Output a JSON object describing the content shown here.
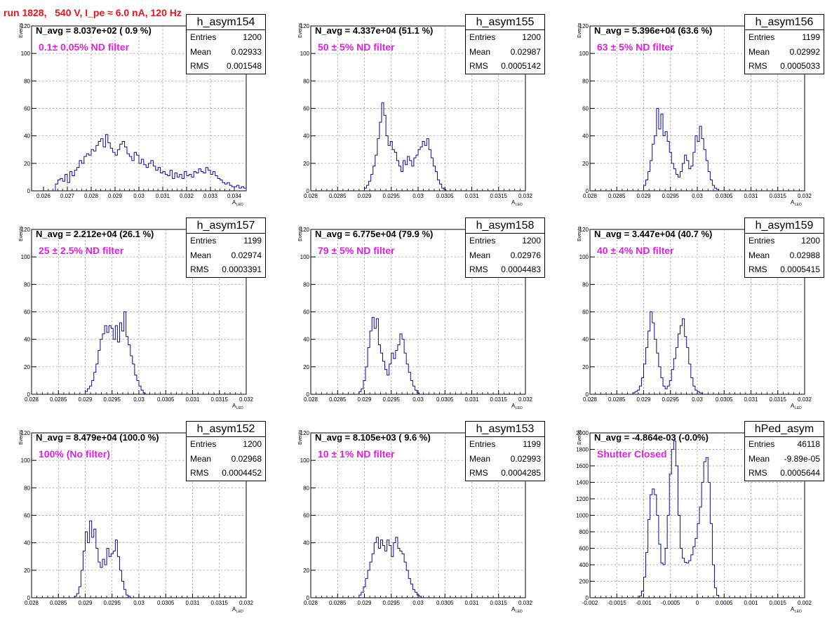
{
  "run_title": "run 1828,   540 V, I_pe ≈ 6.0 nA, 120 Hz",
  "chart_data": [
    {
      "type": "bar",
      "name": "h_asym154",
      "navg": "N_avg = 8.037e+02 ( 0.9 %)",
      "filter": "0.1± 0.05% ND filter",
      "stats": {
        "entries_label": "Entries",
        "entries": "1200",
        "mean_label": "Mean",
        "mean": "0.02933",
        "rms_label": "RMS",
        "rms": "0.001548"
      },
      "xlabel": "A",
      "xlabel_sub": "LED",
      "ylabel": "Events",
      "xlim": [
        0.0255,
        0.0345
      ],
      "ylim": [
        0,
        120
      ],
      "xticks": [
        0.026,
        0.027,
        0.028,
        0.029,
        0.03,
        0.031,
        0.032,
        0.033,
        0.034
      ],
      "xtick_labels": [
        "0.026",
        "0.027",
        "0.028",
        "0.029",
        "0.03",
        "0.031",
        "0.032",
        "0.033",
        "0.034"
      ],
      "yticks": [
        0,
        20,
        40,
        60,
        80,
        100,
        120
      ],
      "ytick_labels": [
        "0",
        "20",
        "40",
        "60",
        "80",
        "100",
        "120"
      ],
      "bin_start": 0.0265,
      "bin_width": 0.0001,
      "values": [
        5,
        8,
        9,
        7,
        12,
        6,
        14,
        11,
        15,
        17,
        22,
        20,
        25,
        27,
        26,
        30,
        29,
        33,
        36,
        38,
        32,
        41,
        35,
        31,
        28,
        26,
        30,
        34,
        36,
        32,
        27,
        25,
        22,
        28,
        26,
        20,
        23,
        19,
        17,
        20,
        22,
        18,
        15,
        17,
        13,
        14,
        12,
        11,
        15,
        9,
        13,
        10,
        12,
        9,
        14,
        11,
        12,
        10,
        14,
        13,
        16,
        14,
        13,
        17,
        15,
        12,
        14,
        11,
        9,
        8,
        6,
        5,
        6,
        4,
        3,
        3,
        4,
        2,
        3,
        2
      ]
    },
    {
      "type": "bar",
      "name": "h_asym155",
      "navg": "N_avg = 4.337e+04 (51.1 %)",
      "filter": "50 ± 5% ND filter",
      "stats": {
        "entries_label": "Entries",
        "entries": "1200",
        "mean_label": "Mean",
        "mean": "0.02987",
        "rms_label": "RMS",
        "rms": "0.0005142"
      },
      "xlabel": "A",
      "xlabel_sub": "LED",
      "ylabel": "Events",
      "xlim": [
        0.028,
        0.032
      ],
      "ylim": [
        0,
        120
      ],
      "xticks": [
        0.028,
        0.0285,
        0.029,
        0.0295,
        0.03,
        0.0305,
        0.031,
        0.0315,
        0.032
      ],
      "xtick_labels": [
        "0.028",
        "0.0285",
        "0.029",
        "0.0295",
        "0.03",
        "0.0305",
        "0.031",
        "0.0315",
        "0.032"
      ],
      "yticks": [
        0,
        20,
        40,
        60,
        80,
        100,
        120
      ],
      "ytick_labels": [
        "0",
        "20",
        "40",
        "60",
        "80",
        "100",
        "120"
      ],
      "bin_start": 0.029,
      "bin_width": 4e-05,
      "values": [
        2,
        4,
        7,
        12,
        18,
        26,
        38,
        50,
        64,
        55,
        40,
        33,
        36,
        30,
        28,
        22,
        18,
        14,
        22,
        19,
        25,
        22,
        18,
        24,
        26,
        30,
        32,
        36,
        33,
        38,
        30,
        24,
        18,
        14,
        8,
        5,
        2,
        1
      ]
    },
    {
      "type": "bar",
      "name": "h_asym156",
      "navg": "N_avg = 5.396e+04 (63.6 %)",
      "filter": "63 ± 5% ND filter",
      "stats": {
        "entries_label": "Entries",
        "entries": "1199",
        "mean_label": "Mean",
        "mean": "0.02992",
        "rms_label": "RMS",
        "rms": "0.0005033"
      },
      "xlabel": "A",
      "xlabel_sub": "LED",
      "ylabel": "Events",
      "xlim": [
        0.028,
        0.032
      ],
      "ylim": [
        0,
        120
      ],
      "xticks": [
        0.028,
        0.0285,
        0.029,
        0.0295,
        0.03,
        0.0305,
        0.031,
        0.0315,
        0.032
      ],
      "xtick_labels": [
        "0.028",
        "0.0285",
        "0.029",
        "0.0295",
        "0.03",
        "0.0305",
        "0.031",
        "0.0315",
        "0.032"
      ],
      "yticks": [
        0,
        20,
        40,
        60,
        80,
        100,
        120
      ],
      "ytick_labels": [
        "0",
        "20",
        "40",
        "60",
        "80",
        "100",
        "120"
      ],
      "bin_start": 0.029,
      "bin_width": 4e-05,
      "values": [
        4,
        8,
        14,
        22,
        34,
        40,
        60,
        45,
        56,
        40,
        43,
        36,
        28,
        20,
        16,
        12,
        10,
        14,
        20,
        26,
        22,
        16,
        18,
        28,
        40,
        36,
        47,
        38,
        30,
        22,
        14,
        8,
        4,
        2,
        1
      ]
    },
    {
      "type": "bar",
      "name": "h_asym157",
      "navg": "N_avg = 2.212e+04 (26.1 %)",
      "filter": "25 ± 2.5% ND filter",
      "stats": {
        "entries_label": "Entries",
        "entries": "1199",
        "mean_label": "Mean",
        "mean": "0.02974",
        "rms_label": "RMS",
        "rms": "0.0003391"
      },
      "xlabel": "A",
      "xlabel_sub": "LED",
      "ylabel": "Events",
      "xlim": [
        0.028,
        0.032
      ],
      "ylim": [
        0,
        120
      ],
      "xticks": [
        0.028,
        0.0285,
        0.029,
        0.0295,
        0.03,
        0.0305,
        0.031,
        0.0315,
        0.032
      ],
      "xtick_labels": [
        "0.028",
        "0.0285",
        "0.029",
        "0.0295",
        "0.03",
        "0.0305",
        "0.031",
        "0.0315",
        "0.032"
      ],
      "yticks": [
        0,
        20,
        40,
        60,
        80,
        100,
        120
      ],
      "ytick_labels": [
        "0",
        "20",
        "40",
        "60",
        "80",
        "100",
        "120"
      ],
      "bin_start": 0.029,
      "bin_width": 4e-05,
      "values": [
        2,
        4,
        6,
        10,
        16,
        22,
        32,
        40,
        44,
        50,
        45,
        50,
        48,
        40,
        50,
        38,
        52,
        46,
        60,
        42,
        36,
        28,
        22,
        14,
        10,
        6,
        3,
        1
      ]
    },
    {
      "type": "bar",
      "name": "h_asym158",
      "navg": "N_avg = 6.775e+04 (79.9 %)",
      "filter": "79 ± 5% ND filter",
      "stats": {
        "entries_label": "Entries",
        "entries": "1200",
        "mean_label": "Mean",
        "mean": "0.02976",
        "rms_label": "RMS",
        "rms": "0.0004483"
      },
      "xlabel": "A",
      "xlabel_sub": "LED",
      "ylabel": "Events",
      "xlim": [
        0.028,
        0.032
      ],
      "ylim": [
        0,
        120
      ],
      "xticks": [
        0.028,
        0.0285,
        0.029,
        0.0295,
        0.03,
        0.0305,
        0.031,
        0.0315,
        0.032
      ],
      "xtick_labels": [
        "0.028",
        "0.0285",
        "0.029",
        "0.0295",
        "0.03",
        "0.0305",
        "0.031",
        "0.0315",
        "0.032"
      ],
      "yticks": [
        0,
        20,
        40,
        60,
        80,
        100,
        120
      ],
      "ytick_labels": [
        "0",
        "20",
        "40",
        "60",
        "80",
        "100",
        "120"
      ],
      "bin_start": 0.0289,
      "bin_width": 4e-05,
      "values": [
        2,
        4,
        10,
        20,
        34,
        46,
        56,
        48,
        55,
        36,
        30,
        24,
        18,
        14,
        22,
        30,
        26,
        32,
        36,
        44,
        40,
        30,
        22,
        16,
        10,
        6,
        3,
        1
      ]
    },
    {
      "type": "bar",
      "name": "h_asym159",
      "navg": "N_avg = 3.447e+04 (40.7 %)",
      "filter": "40 ± 4% ND filter",
      "stats": {
        "entries_label": "Entries",
        "entries": "1200",
        "mean_label": "Mean",
        "mean": "0.02988",
        "rms_label": "RMS",
        "rms": "0.0005415"
      },
      "xlabel": "A",
      "xlabel_sub": "LED",
      "ylabel": "Events",
      "xlim": [
        0.028,
        0.032
      ],
      "ylim": [
        0,
        120
      ],
      "xticks": [
        0.028,
        0.0285,
        0.029,
        0.0295,
        0.03,
        0.0305,
        0.031,
        0.0315,
        0.032
      ],
      "xtick_labels": [
        "0.028",
        "0.0285",
        "0.029",
        "0.0295",
        "0.03",
        "0.0305",
        "0.031",
        "0.0315",
        "0.032"
      ],
      "yticks": [
        0,
        20,
        40,
        60,
        80,
        100,
        120
      ],
      "ytick_labels": [
        "0",
        "20",
        "40",
        "60",
        "80",
        "100",
        "120"
      ],
      "bin_start": 0.0288,
      "bin_width": 4e-05,
      "values": [
        1,
        2,
        3,
        6,
        12,
        22,
        34,
        46,
        60,
        52,
        40,
        30,
        20,
        12,
        6,
        4,
        6,
        10,
        18,
        26,
        34,
        44,
        50,
        55,
        42,
        34,
        22,
        12,
        6,
        3,
        2,
        1
      ]
    },
    {
      "type": "bar",
      "name": "h_asym152",
      "navg": "N_avg = 8.479e+04 (100.0 %)",
      "filter": "100% (No filter)",
      "stats": {
        "entries_label": "Entries",
        "entries": "1200",
        "mean_label": "Mean",
        "mean": "0.02968",
        "rms_label": "RMS",
        "rms": "0.0004452"
      },
      "xlabel": "A",
      "xlabel_sub": "LED",
      "ylabel": "Events",
      "xlim": [
        0.028,
        0.032
      ],
      "ylim": [
        0,
        120
      ],
      "xticks": [
        0.028,
        0.0285,
        0.029,
        0.0295,
        0.03,
        0.0305,
        0.031,
        0.0315,
        0.032
      ],
      "xtick_labels": [
        "0.028",
        "0.0285",
        "0.029",
        "0.0295",
        "0.03",
        "0.0305",
        "0.031",
        "0.0315",
        "0.032"
      ],
      "yticks": [
        0,
        20,
        40,
        60,
        80,
        100,
        120
      ],
      "ytick_labels": [
        "0",
        "20",
        "40",
        "60",
        "80",
        "100",
        "120"
      ],
      "bin_start": 0.0288,
      "bin_width": 4e-05,
      "values": [
        1,
        3,
        8,
        20,
        34,
        48,
        40,
        56,
        44,
        50,
        36,
        26,
        22,
        28,
        24,
        36,
        30,
        32,
        34,
        42,
        30,
        20,
        12,
        6,
        2,
        1
      ]
    },
    {
      "type": "bar",
      "name": "h_asym153",
      "navg": "N_avg = 8.105e+03 ( 9.6 %)",
      "filter": "10 ± 1% ND filter",
      "stats": {
        "entries_label": "Entries",
        "entries": "1199",
        "mean_label": "Mean",
        "mean": "0.02993",
        "rms_label": "RMS",
        "rms": "0.0004285"
      },
      "xlabel": "A",
      "xlabel_sub": "LED",
      "ylabel": "Events",
      "xlim": [
        0.028,
        0.032
      ],
      "ylim": [
        0,
        120
      ],
      "xticks": [
        0.028,
        0.0285,
        0.029,
        0.0295,
        0.03,
        0.0305,
        0.031,
        0.0315,
        0.032
      ],
      "xtick_labels": [
        "0.028",
        "0.0285",
        "0.029",
        "0.0295",
        "0.03",
        "0.0305",
        "0.031",
        "0.0315",
        "0.032"
      ],
      "yticks": [
        0,
        20,
        40,
        60,
        80,
        100,
        120
      ],
      "ytick_labels": [
        "0",
        "20",
        "40",
        "60",
        "80",
        "100",
        "120"
      ],
      "bin_start": 0.0289,
      "bin_width": 4e-05,
      "values": [
        2,
        4,
        8,
        14,
        20,
        26,
        32,
        40,
        44,
        36,
        42,
        38,
        34,
        42,
        38,
        30,
        40,
        44,
        36,
        34,
        32,
        26,
        20,
        14,
        10,
        6,
        4,
        2,
        1
      ]
    },
    {
      "type": "bar",
      "name": "hPed_asym",
      "navg": "N_avg = -4.864e-03 (-0.0%)",
      "filter": "Shutter Closed",
      "stats": {
        "entries_label": "Entries",
        "entries": "46118",
        "mean_label": "Mean",
        "mean": "-9.89e-05",
        "rms_label": "RMS",
        "rms": "0.0005644"
      },
      "xlabel": "A",
      "xlabel_sub": "LED",
      "ylabel": "Events",
      "xlim": [
        -0.002,
        0.002
      ],
      "ylim": [
        0,
        2000
      ],
      "xticks": [
        -0.002,
        -0.0015,
        -0.001,
        -0.0005,
        0,
        0.0005,
        0.001,
        0.0015,
        0.002
      ],
      "xtick_labels": [
        "-0.002",
        "-0.0015",
        "-0.001",
        "-0.0005",
        "0",
        "0.0005",
        "0.001",
        "0.0015",
        "0.002"
      ],
      "yticks": [
        0,
        200,
        400,
        600,
        800,
        1000,
        1200,
        1400,
        1600,
        1800,
        2000
      ],
      "ytick_labels": [
        "0",
        "200",
        "400",
        "600",
        "800",
        "1000",
        "1200",
        "1400",
        "1600",
        "1800",
        "2000"
      ],
      "bin_start": -0.00108,
      "bin_width": 4e-05,
      "values": [
        20,
        80,
        250,
        550,
        950,
        1250,
        1320,
        1250,
        1000,
        650,
        420,
        400,
        600,
        1000,
        1500,
        1800,
        1900,
        1600,
        1000,
        600,
        480,
        430,
        420,
        450,
        520,
        620,
        720,
        900,
        1100,
        1400,
        1650,
        1700,
        1400,
        900,
        400,
        120,
        30
      ]
    }
  ]
}
